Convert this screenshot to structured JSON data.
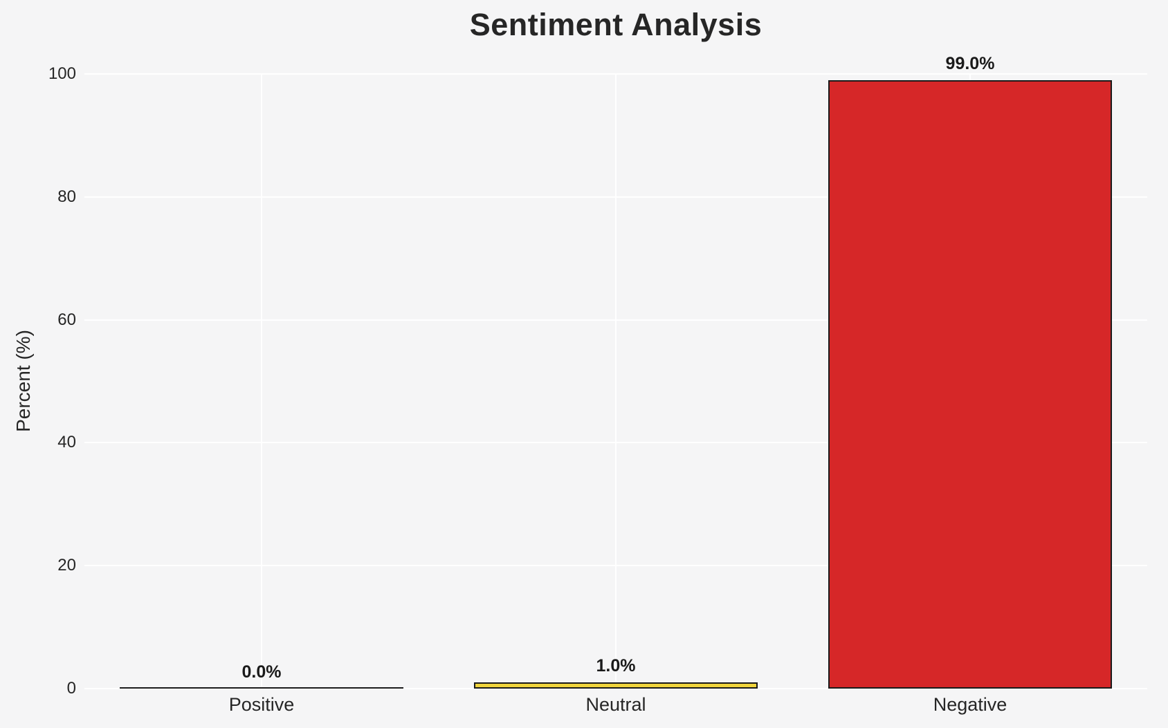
{
  "figure": {
    "background_color": "#f5f5f6",
    "grid_color": "#ffffff",
    "text_color": "#262626",
    "value_label_color": "#1a1a1a"
  },
  "chart_data": {
    "type": "bar",
    "title": "Sentiment Analysis",
    "xlabel": "",
    "ylabel": "Percent (%)",
    "categories": [
      "Positive",
      "Neutral",
      "Negative"
    ],
    "values": [
      0.0,
      1.0,
      99.0
    ],
    "bar_value_labels": [
      "0.0%",
      "1.0%",
      "99.0%"
    ],
    "bar_colors": [
      null,
      "#f0d43c",
      "#d62728"
    ],
    "bar_edge_color": "#1a1a1a",
    "bar_width_fraction": 0.8,
    "ylim": [
      0,
      100
    ],
    "yticks": [
      0,
      20,
      40,
      60,
      80,
      100
    ],
    "ytick_labels": [
      "0",
      "20",
      "40",
      "60",
      "80",
      "100"
    ],
    "grid": true,
    "grid_axes": "both",
    "legend_position": "none"
  }
}
